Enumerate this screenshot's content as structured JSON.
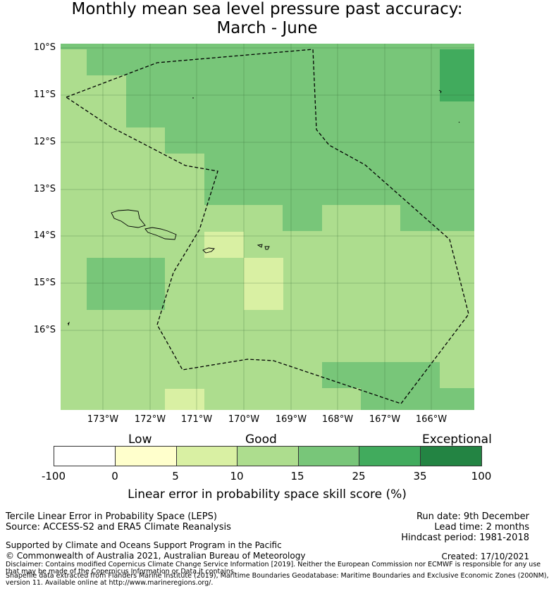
{
  "title": {
    "line1": "Monthly mean sea level pressure past accuracy:",
    "line2": "March - June"
  },
  "map": {
    "lat_labels": [
      "10°S",
      "11°S",
      "12°S",
      "13°S",
      "14°S",
      "15°S",
      "16°S"
    ],
    "lon_labels": [
      "173°W",
      "172°W",
      "171°W",
      "170°W",
      "169°W",
      "168°W",
      "167°W",
      "166°W"
    ]
  },
  "colorbar": {
    "categories": [
      "Low",
      "Good",
      "Exceptional"
    ],
    "ticks": [
      "-100",
      "0",
      "5",
      "10",
      "15",
      "25",
      "35",
      "100"
    ],
    "colors": [
      "#ffffff",
      "#ffffcc",
      "#d9f0a3",
      "#addd8e",
      "#78c679",
      "#41ab5d",
      "#238443"
    ],
    "label": "Linear error in probability space skill score (%)"
  },
  "footer": {
    "left1": "Tercile Linear Error in Probability Space (LEPS)",
    "left2": "Source: ACCESS-S2 and ERA5 Climate Reanalysis",
    "right1": "Run date: 9th December",
    "right2": "Lead time: 2 months",
    "right3": "Hindcast period: 1981-2018",
    "support": "Supported by Climate and Oceans Support Program in the Pacific",
    "copyright": "© Commonwealth of Australia 2021, Australian Bureau of Meteorology",
    "created": "Created: 17/10/2021",
    "disclaimer1": "Disclaimer: Contains modified Copernicus Climate Change Service Information [2019]. Neither the European Commission nor ECMWF is responsible for any use",
    "disclaimer2": "that may be made of the Copernicus Information or Data it contains.",
    "shapefile1": "Shapefile data extracted from Flanders Marine Institute (2019), Maritime Boundaries Geodatabase: Maritime Boundaries and Exclusive Economic Zones (200NM),",
    "shapefile2": "version 11. Available online at http://www.marineregions.org/."
  }
}
